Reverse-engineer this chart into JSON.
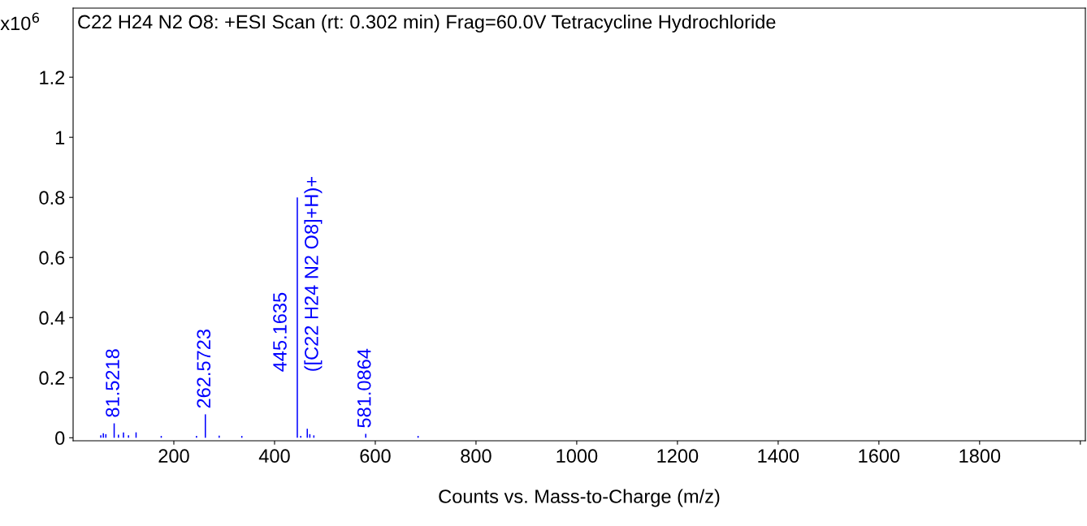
{
  "chart_data": {
    "type": "bar",
    "title": "C22 H24 N2 O8: +ESI Scan (rt: 0.302 min) Frag=60.0V Tetracycline Hydrochloride",
    "xlabel": "Counts vs. Mass-to-Charge (m/z)",
    "ylabel": "x10$^{6}$",
    "x": [
      55,
      60,
      65,
      81.5218,
      90,
      100,
      110,
      125,
      175,
      245,
      262.5723,
      290,
      335,
      445.1635,
      452,
      465,
      470,
      478,
      581.0864,
      685
    ],
    "values": [
      0.008,
      0.015,
      0.012,
      0.048,
      0.01,
      0.018,
      0.008,
      0.018,
      0.006,
      0.006,
      0.078,
      0.007,
      0.006,
      0.8,
      0.006,
      0.03,
      0.012,
      0.008,
      0.013,
      0.006
    ],
    "color": "#0000ff",
    "xlim": [
      0,
      2010
    ],
    "ylim": [
      -0.01,
      1.43
    ],
    "xticks": [
      200,
      400,
      600,
      800,
      1000,
      1200,
      1400,
      1600,
      1800,
      {
        "value": 2000,
        "label": null
      }
    ],
    "yticks": [
      0,
      0.2,
      0.4,
      0.6,
      0.8,
      1,
      1.2
    ],
    "annotations": [
      {
        "text": "81.5218",
        "x": 81.5218,
        "y": 0.048
      },
      {
        "text": "262.5723",
        "x": 262.5723,
        "y": 0.078
      },
      {
        "text": "445.1635",
        "x": 445.1635,
        "y": 0.2
      },
      {
        "text": "([C22 H24 N2 O8]+H)+",
        "x": 445.1635,
        "y": 0.2
      },
      {
        "text": "581.0864",
        "x": 581.0864,
        "y": 0.013
      }
    ],
    "grid": false
  }
}
